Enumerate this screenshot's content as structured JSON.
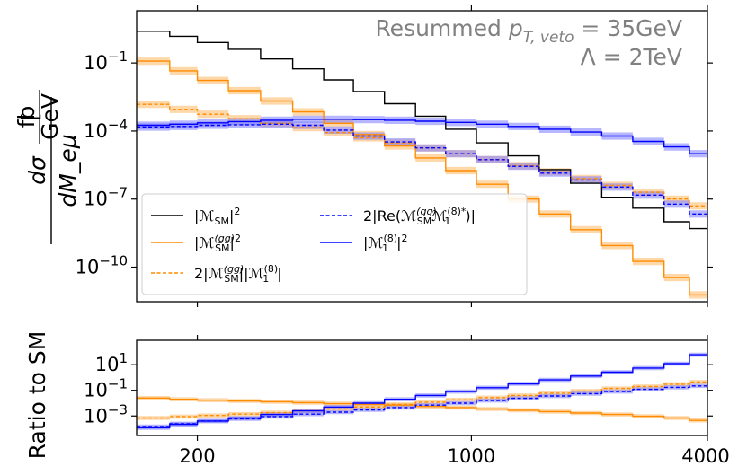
{
  "chart_data": [
    {
      "type": "line",
      "subtype": "step-histogram-with-uncertainty-bands",
      "panel": "main",
      "xscale": "log",
      "yscale": "log",
      "xlim": [
        140,
        4000
      ],
      "ylim": [
        3e-12,
        20
      ],
      "yticks": [
        0.1,
        0.0001,
        1e-07,
        1e-10
      ],
      "ytick_labels": [
        "10^-1",
        "10^-4",
        "10^-7",
        "10^-10"
      ],
      "ylabel": {
        "numerator": "dσ",
        "denominator": "dM_eμ",
        "unit_top": "fb",
        "unit_bottom": "GeV"
      },
      "annotations": [
        "Resummed p_T,veto = 35GeV",
        "Λ = 2TeV"
      ],
      "annotation_parts": {
        "line1_prefix": "Resummed ",
        "line1_symbol": "p",
        "line1_subscript": "T, veto",
        "line1_suffix": " = 35GeV",
        "line2": "Λ = 2TeV"
      },
      "legend_position": "lower-left",
      "bin_edges": [
        140,
        170,
        200,
        240,
        290,
        350,
        420,
        500,
        600,
        720,
        860,
        1030,
        1240,
        1490,
        1790,
        2150,
        2580,
        3100,
        3600,
        4000
      ],
      "series": [
        {
          "name": "|M_SM|^2",
          "color": "#000000",
          "style": "solid",
          "band": false,
          "values": [
            2.5,
            1.5,
            0.8,
            0.4,
            0.15,
            0.055,
            0.018,
            0.0055,
            0.0016,
            0.00045,
            0.00012,
            3e-05,
            8e-06,
            2e-06,
            5e-07,
            1.2e-07,
            4e-08,
            1e-08,
            5e-09
          ]
        },
        {
          "name": "|M_SM^(gg)|^2",
          "color": "#ff8c00",
          "style": "solid",
          "band": true,
          "values": [
            0.12,
            0.045,
            0.017,
            0.006,
            0.0021,
            0.0007,
            0.00022,
            7e-05,
            2.2e-05,
            6.5e-06,
            1.8e-06,
            4.5e-07,
            1e-07,
            2.2e-08,
            4.5e-09,
            9e-10,
            1.8e-10,
            3.5e-11,
            6e-12
          ]
        },
        {
          "name": "2|M_SM^(gg)||M_1^(8)|",
          "color": "#ff8c00",
          "style": "dashed",
          "band": true,
          "values": [
            0.0015,
            0.0009,
            0.00055,
            0.00035,
            0.00022,
            0.00014,
            8.5e-05,
            5e-05,
            3e-05,
            1.8e-05,
            1e-05,
            5.5e-06,
            3e-06,
            1.6e-06,
            8e-07,
            4e-07,
            2e-07,
            1e-07,
            5e-08
          ]
        },
        {
          "name": "2|Re(M_SM^(gg) M_1^(8)*)|",
          "color": "#0000ff",
          "style": "dashed",
          "band": true,
          "values": [
            0.00015,
            0.00016,
            0.00018,
            0.00019,
            0.0002,
            0.00018,
            0.00011,
            6e-05,
            3.3e-05,
            1.8e-05,
            1e-05,
            5.5e-06,
            2.8e-06,
            1.4e-06,
            7e-07,
            3.4e-07,
            1.5e-07,
            6e-08,
            2.2e-08
          ]
        },
        {
          "name": "|M_1^(8)|^2",
          "color": "#0000ff",
          "style": "solid",
          "band": true,
          "values": [
            0.00018,
            0.0002,
            0.00023,
            0.00026,
            0.0003,
            0.00033,
            0.00033,
            0.00032,
            0.0003,
            0.00027,
            0.00024,
            0.0002,
            0.00016,
            0.00012,
            9e-05,
            6e-05,
            3.5e-05,
            2e-05,
            1e-05
          ]
        }
      ]
    },
    {
      "type": "line",
      "subtype": "step-histogram-with-uncertainty-bands",
      "panel": "ratio",
      "xscale": "log",
      "yscale": "log",
      "xlim": [
        140,
        4000
      ],
      "ylim": [
        3e-05,
        800
      ],
      "xticks": [
        200,
        1000,
        4000
      ],
      "xtick_labels": [
        "200",
        "1000",
        "4000"
      ],
      "yticks": [
        10,
        0.1,
        0.001
      ],
      "ytick_labels": [
        "10^1",
        "10^-1",
        "10^-3"
      ],
      "ylabel": "Ratio to SM",
      "series": [
        {
          "name": "|M_SM^(gg)|^2 / |M_SM|^2",
          "color": "#ff8c00",
          "style": "solid",
          "band": true,
          "values": [
            0.025,
            0.02,
            0.017,
            0.015,
            0.013,
            0.011,
            0.009,
            0.008,
            0.007,
            0.0055,
            0.0045,
            0.0035,
            0.0028,
            0.0022,
            0.0017,
            0.0013,
            0.00095,
            0.0007,
            0.00045
          ]
        },
        {
          "name": "2|M_SM^(gg)||M_1^(8)| / |M_SM|^2",
          "color": "#ff8c00",
          "style": "dashed",
          "band": true,
          "values": [
            0.0007,
            0.0009,
            0.0011,
            0.0014,
            0.0018,
            0.0025,
            0.0035,
            0.005,
            0.008,
            0.012,
            0.018,
            0.027,
            0.04,
            0.06,
            0.09,
            0.14,
            0.2,
            0.3,
            0.45
          ]
        },
        {
          "name": "2|Re(M_SM^(gg) M_1^(8)*)| / |M_SM|^2",
          "color": "#0000ff",
          "style": "dashed",
          "band": true,
          "values": [
            0.00015,
            0.00025,
            0.0004,
            0.0006,
            0.0009,
            0.0014,
            0.002,
            0.003,
            0.0045,
            0.007,
            0.01,
            0.016,
            0.024,
            0.036,
            0.055,
            0.08,
            0.12,
            0.17,
            0.22
          ]
        },
        {
          "name": "|M_1^(8)|^2 / |M_SM|^2",
          "color": "#0000ff",
          "style": "solid",
          "band": true,
          "values": [
            0.00012,
            0.00022,
            0.0004,
            0.0007,
            0.0013,
            0.0025,
            0.005,
            0.01,
            0.02,
            0.04,
            0.08,
            0.16,
            0.32,
            0.65,
            1.3,
            2.6,
            5.5,
            12,
            60
          ]
        }
      ]
    }
  ]
}
